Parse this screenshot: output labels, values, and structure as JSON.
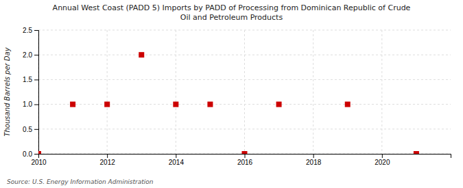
{
  "chart_data": {
    "type": "scatter",
    "title": "Annual West Coast (PADD 5) Imports by PADD of Processing from Dominican Republic of Crude\nOil and Petroleum Products",
    "y_label": "Thousand Barrels per Day",
    "annotations": [
      "Source: U.S. Energy Information Administration"
    ],
    "x": [
      2010,
      2011,
      2012,
      2013,
      2014,
      2015,
      2016,
      2017,
      2019,
      2021
    ],
    "values": [
      0.0,
      1.0,
      1.0,
      2.0,
      1.0,
      1.0,
      0.0,
      1.0,
      1.0,
      0.0
    ],
    "color": "#cc0000",
    "marker": "square",
    "xlim": [
      2010,
      2022
    ],
    "ylim": [
      0,
      2.5
    ],
    "xticks": [
      2010,
      2012,
      2014,
      2016,
      2018,
      2020
    ],
    "yticks": [
      {
        "value": 0,
        "label": "0.0"
      },
      0.5,
      {
        "value": 1,
        "label": "1.0"
      },
      1.5,
      {
        "value": 2,
        "label": "2.0"
      },
      2.5
    ],
    "grid": true
  }
}
